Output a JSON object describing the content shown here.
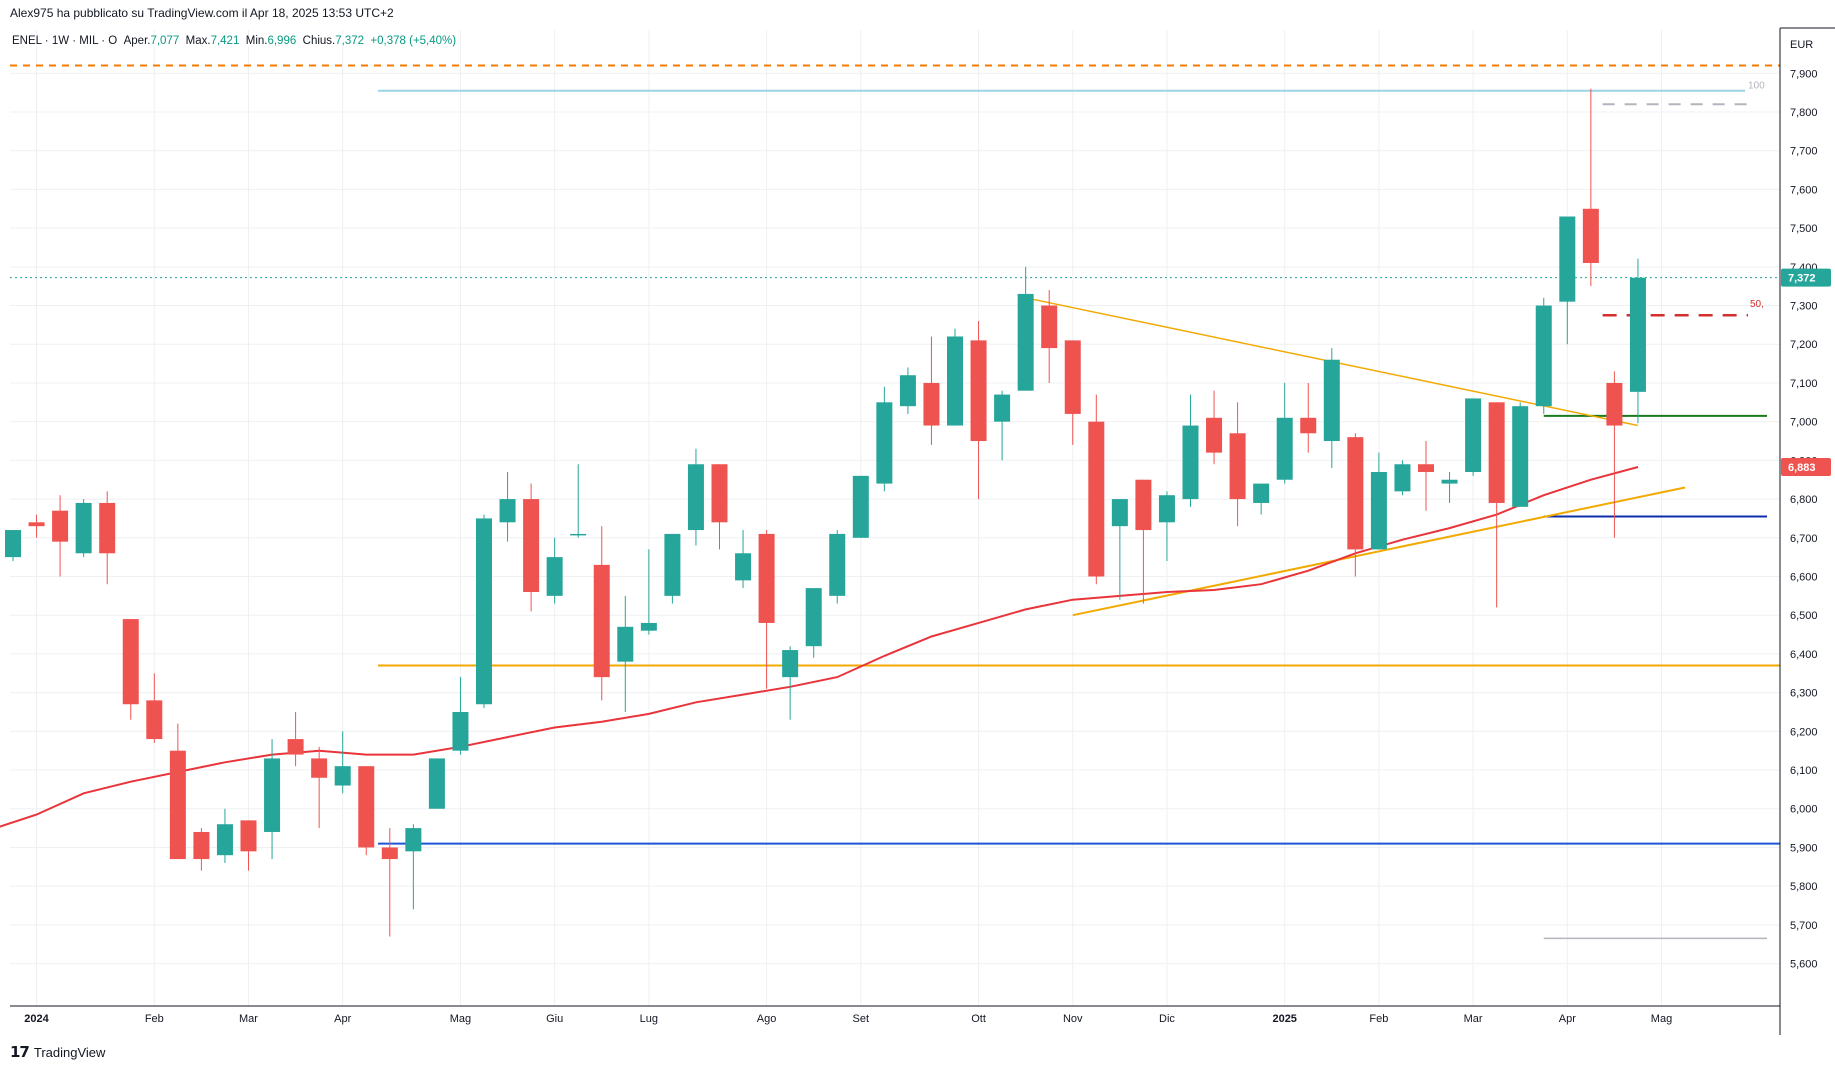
{
  "header": {
    "publish_text": "Alex975 ha pubblicato su TradingView.com il Apr 18, 2025 13:53 UTC+2"
  },
  "legend": {
    "symbol": "ENEL · 1W · MIL · O",
    "open_label": "Aper.",
    "open_value": "7,077",
    "high_label": "Max.",
    "high_value": "7,421",
    "low_label": "Min.",
    "low_value": "6,996",
    "close_label": "Chius.",
    "close_value": "7,372",
    "change_value": "+0,378 (+5,40%)"
  },
  "footer": {
    "logo_text": "17",
    "brand": "TradingView"
  },
  "colors": {
    "up": "#26a69a",
    "down": "#ef5350",
    "ma": "#e8343a",
    "grid": "#eef0f3",
    "orange_dashed": "#f57c00",
    "blue_line": "#1e56d6",
    "navy_line": "#0d2eab",
    "green_line": "#1b7a1b",
    "yellow_line": "#f2a900",
    "light_blue_line": "#9bd4e4",
    "grey_line": "#b2b5be",
    "red_dashed": "#d32f2f"
  },
  "chart_data": {
    "type": "candlestick",
    "currency": "EUR",
    "y_ticks": [
      "7,900",
      "7,800",
      "7,700",
      "7,600",
      "7,500",
      "7,400",
      "7,300",
      "7,200",
      "7,100",
      "7,000",
      "6,900",
      "6,800",
      "6,700",
      "6,600",
      "6,500",
      "6,400",
      "6,300",
      "6,200",
      "6,100",
      "6,000",
      "5,900",
      "5,800",
      "5,700",
      "5,600"
    ],
    "ylim": [
      5.555,
      7.955
    ],
    "x_labels": [
      {
        "label": "2024",
        "bar": 1,
        "bold": true
      },
      {
        "label": "Feb",
        "bar": 6
      },
      {
        "label": "Mar",
        "bar": 10
      },
      {
        "label": "Apr",
        "bar": 14
      },
      {
        "label": "Mag",
        "bar": 19
      },
      {
        "label": "Giu",
        "bar": 23
      },
      {
        "label": "Lug",
        "bar": 27
      },
      {
        "label": "Ago",
        "bar": 32
      },
      {
        "label": "Set",
        "bar": 36
      },
      {
        "label": "Ott",
        "bar": 41
      },
      {
        "label": "Nov",
        "bar": 45
      },
      {
        "label": "Dic",
        "bar": 49
      },
      {
        "label": "2025",
        "bar": 54,
        "bold": true
      },
      {
        "label": "Feb",
        "bar": 58
      },
      {
        "label": "Mar",
        "bar": 62
      },
      {
        "label": "Apr",
        "bar": 66
      },
      {
        "label": "Mag",
        "bar": 70
      }
    ],
    "candles": [
      {
        "o": 6.65,
        "h": 6.72,
        "l": 6.64,
        "c": 6.72
      },
      {
        "o": 6.74,
        "h": 6.76,
        "l": 6.7,
        "c": 6.73
      },
      {
        "o": 6.77,
        "h": 6.81,
        "l": 6.6,
        "c": 6.69
      },
      {
        "o": 6.66,
        "h": 6.8,
        "l": 6.65,
        "c": 6.79
      },
      {
        "o": 6.79,
        "h": 6.82,
        "l": 6.58,
        "c": 6.66
      },
      {
        "o": 6.49,
        "h": 6.49,
        "l": 6.23,
        "c": 6.27
      },
      {
        "o": 6.28,
        "h": 6.35,
        "l": 6.17,
        "c": 6.18
      },
      {
        "o": 6.15,
        "h": 6.22,
        "l": 5.87,
        "c": 5.87
      },
      {
        "o": 5.94,
        "h": 5.95,
        "l": 5.84,
        "c": 5.87
      },
      {
        "o": 5.88,
        "h": 6.0,
        "l": 5.86,
        "c": 5.96
      },
      {
        "o": 5.97,
        "h": 5.97,
        "l": 5.84,
        "c": 5.89
      },
      {
        "o": 5.94,
        "h": 6.18,
        "l": 5.87,
        "c": 6.13
      },
      {
        "o": 6.18,
        "h": 6.25,
        "l": 6.11,
        "c": 6.14
      },
      {
        "o": 6.13,
        "h": 6.16,
        "l": 5.95,
        "c": 6.08
      },
      {
        "o": 6.06,
        "h": 6.2,
        "l": 6.04,
        "c": 6.11
      },
      {
        "o": 6.11,
        "h": 6.11,
        "l": 5.88,
        "c": 5.9
      },
      {
        "o": 5.9,
        "h": 5.95,
        "l": 5.67,
        "c": 5.87
      },
      {
        "o": 5.89,
        "h": 5.96,
        "l": 5.74,
        "c": 5.95
      },
      {
        "o": 6.0,
        "h": 6.13,
        "l": 6.0,
        "c": 6.13
      },
      {
        "o": 6.15,
        "h": 6.34,
        "l": 6.14,
        "c": 6.25
      },
      {
        "o": 6.27,
        "h": 6.76,
        "l": 6.26,
        "c": 6.75
      },
      {
        "o": 6.74,
        "h": 6.87,
        "l": 6.69,
        "c": 6.8
      },
      {
        "o": 6.8,
        "h": 6.84,
        "l": 6.51,
        "c": 6.56
      },
      {
        "o": 6.55,
        "h": 6.7,
        "l": 6.53,
        "c": 6.65
      },
      {
        "o": 6.71,
        "h": 6.89,
        "l": 6.7,
        "c": 6.71
      },
      {
        "o": 6.63,
        "h": 6.73,
        "l": 6.28,
        "c": 6.34
      },
      {
        "o": 6.38,
        "h": 6.55,
        "l": 6.25,
        "c": 6.47
      },
      {
        "o": 6.46,
        "h": 6.67,
        "l": 6.45,
        "c": 6.48
      },
      {
        "o": 6.55,
        "h": 6.71,
        "l": 6.53,
        "c": 6.71
      },
      {
        "o": 6.72,
        "h": 6.93,
        "l": 6.68,
        "c": 6.89
      },
      {
        "o": 6.89,
        "h": 6.89,
        "l": 6.67,
        "c": 6.74
      },
      {
        "o": 6.59,
        "h": 6.72,
        "l": 6.57,
        "c": 6.66
      },
      {
        "o": 6.71,
        "h": 6.72,
        "l": 6.31,
        "c": 6.48
      },
      {
        "o": 6.34,
        "h": 6.42,
        "l": 6.23,
        "c": 6.41
      },
      {
        "o": 6.42,
        "h": 6.57,
        "l": 6.39,
        "c": 6.57
      },
      {
        "o": 6.55,
        "h": 6.72,
        "l": 6.53,
        "c": 6.71
      },
      {
        "o": 6.7,
        "h": 6.86,
        "l": 6.7,
        "c": 6.86
      },
      {
        "o": 6.84,
        "h": 7.09,
        "l": 6.82,
        "c": 7.05
      },
      {
        "o": 7.04,
        "h": 7.14,
        "l": 7.02,
        "c": 7.12
      },
      {
        "o": 7.1,
        "h": 7.22,
        "l": 6.94,
        "c": 6.99
      },
      {
        "o": 6.99,
        "h": 7.24,
        "l": 6.99,
        "c": 7.22
      },
      {
        "o": 7.21,
        "h": 7.26,
        "l": 6.8,
        "c": 6.95
      },
      {
        "o": 7.0,
        "h": 7.08,
        "l": 6.9,
        "c": 7.07
      },
      {
        "o": 7.08,
        "h": 7.4,
        "l": 7.08,
        "c": 7.33
      },
      {
        "o": 7.3,
        "h": 7.34,
        "l": 7.1,
        "c": 7.19
      },
      {
        "o": 7.21,
        "h": 7.21,
        "l": 6.94,
        "c": 7.02
      },
      {
        "o": 7.0,
        "h": 7.07,
        "l": 6.58,
        "c": 6.6
      },
      {
        "o": 6.73,
        "h": 6.8,
        "l": 6.54,
        "c": 6.8
      },
      {
        "o": 6.85,
        "h": 6.85,
        "l": 6.53,
        "c": 6.72
      },
      {
        "o": 6.74,
        "h": 6.82,
        "l": 6.64,
        "c": 6.81
      },
      {
        "o": 6.8,
        "h": 7.07,
        "l": 6.78,
        "c": 6.99
      },
      {
        "o": 7.01,
        "h": 7.08,
        "l": 6.89,
        "c": 6.92
      },
      {
        "o": 6.97,
        "h": 7.05,
        "l": 6.73,
        "c": 6.8
      },
      {
        "o": 6.79,
        "h": 6.84,
        "l": 6.76,
        "c": 6.84
      },
      {
        "o": 6.85,
        "h": 7.1,
        "l": 6.84,
        "c": 7.01
      },
      {
        "o": 7.01,
        "h": 7.1,
        "l": 6.92,
        "c": 6.97
      },
      {
        "o": 6.95,
        "h": 7.19,
        "l": 6.88,
        "c": 7.16
      },
      {
        "o": 6.96,
        "h": 6.97,
        "l": 6.6,
        "c": 6.67
      },
      {
        "o": 6.67,
        "h": 6.92,
        "l": 6.67,
        "c": 6.87
      },
      {
        "o": 6.82,
        "h": 6.9,
        "l": 6.81,
        "c": 6.89
      },
      {
        "o": 6.89,
        "h": 6.95,
        "l": 6.77,
        "c": 6.87
      },
      {
        "o": 6.84,
        "h": 6.87,
        "l": 6.79,
        "c": 6.85
      },
      {
        "o": 6.87,
        "h": 7.06,
        "l": 6.86,
        "c": 7.06
      },
      {
        "o": 7.05,
        "h": 7.05,
        "l": 6.52,
        "c": 6.79
      },
      {
        "o": 6.78,
        "h": 7.05,
        "l": 6.78,
        "c": 7.04
      },
      {
        "o": 7.04,
        "h": 7.32,
        "l": 7.02,
        "c": 7.3
      },
      {
        "o": 7.31,
        "h": 7.53,
        "l": 7.2,
        "c": 7.53
      },
      {
        "o": 7.55,
        "h": 7.86,
        "l": 7.35,
        "c": 7.41
      },
      {
        "o": 7.1,
        "h": 7.13,
        "l": 6.7,
        "c": 6.99
      },
      {
        "o": 7.077,
        "h": 7.421,
        "l": 6.996,
        "c": 7.372
      }
    ],
    "ma_series": [
      {
        "bar": -1,
        "v": 5.945
      },
      {
        "bar": 1,
        "v": 5.985
      },
      {
        "bar": 3,
        "v": 6.04
      },
      {
        "bar": 5,
        "v": 6.07
      },
      {
        "bar": 7,
        "v": 6.095
      },
      {
        "bar": 9,
        "v": 6.12
      },
      {
        "bar": 11,
        "v": 6.14
      },
      {
        "bar": 13,
        "v": 6.15
      },
      {
        "bar": 15,
        "v": 6.14
      },
      {
        "bar": 17,
        "v": 6.14
      },
      {
        "bar": 19,
        "v": 6.16
      },
      {
        "bar": 21,
        "v": 6.185
      },
      {
        "bar": 23,
        "v": 6.21
      },
      {
        "bar": 25,
        "v": 6.225
      },
      {
        "bar": 27,
        "v": 6.245
      },
      {
        "bar": 29,
        "v": 6.275
      },
      {
        "bar": 31,
        "v": 6.295
      },
      {
        "bar": 33,
        "v": 6.315
      },
      {
        "bar": 35,
        "v": 6.34
      },
      {
        "bar": 37,
        "v": 6.395
      },
      {
        "bar": 39,
        "v": 6.445
      },
      {
        "bar": 41,
        "v": 6.48
      },
      {
        "bar": 43,
        "v": 6.515
      },
      {
        "bar": 45,
        "v": 6.54
      },
      {
        "bar": 47,
        "v": 6.55
      },
      {
        "bar": 49,
        "v": 6.56
      },
      {
        "bar": 51,
        "v": 6.565
      },
      {
        "bar": 53,
        "v": 6.58
      },
      {
        "bar": 55,
        "v": 6.615
      },
      {
        "bar": 57,
        "v": 6.66
      },
      {
        "bar": 59,
        "v": 6.695
      },
      {
        "bar": 61,
        "v": 6.725
      },
      {
        "bar": 63,
        "v": 6.76
      },
      {
        "bar": 65,
        "v": 6.81
      },
      {
        "bar": 67,
        "v": 6.85
      },
      {
        "bar": 69,
        "v": 6.883
      }
    ],
    "price_label": "7,372",
    "ma_label": "6,883",
    "drawings": {
      "orange_dashed_level": 7.92,
      "light_blue_level": 7.855,
      "resistance_label": "100",
      "fib50_label": "50,",
      "fib50_level": 7.275,
      "green_level": 7.015,
      "navy_level": 6.755,
      "yellow_level": 6.37,
      "blue_level": 5.91,
      "grey_level": 5.665,
      "downtrend": [
        {
          "bar": 43,
          "v": 7.32
        },
        {
          "bar": 69,
          "v": 6.99
        }
      ],
      "uptrend": [
        {
          "bar": 45,
          "v": 6.5
        },
        {
          "bar": 71,
          "v": 6.83
        }
      ]
    }
  }
}
